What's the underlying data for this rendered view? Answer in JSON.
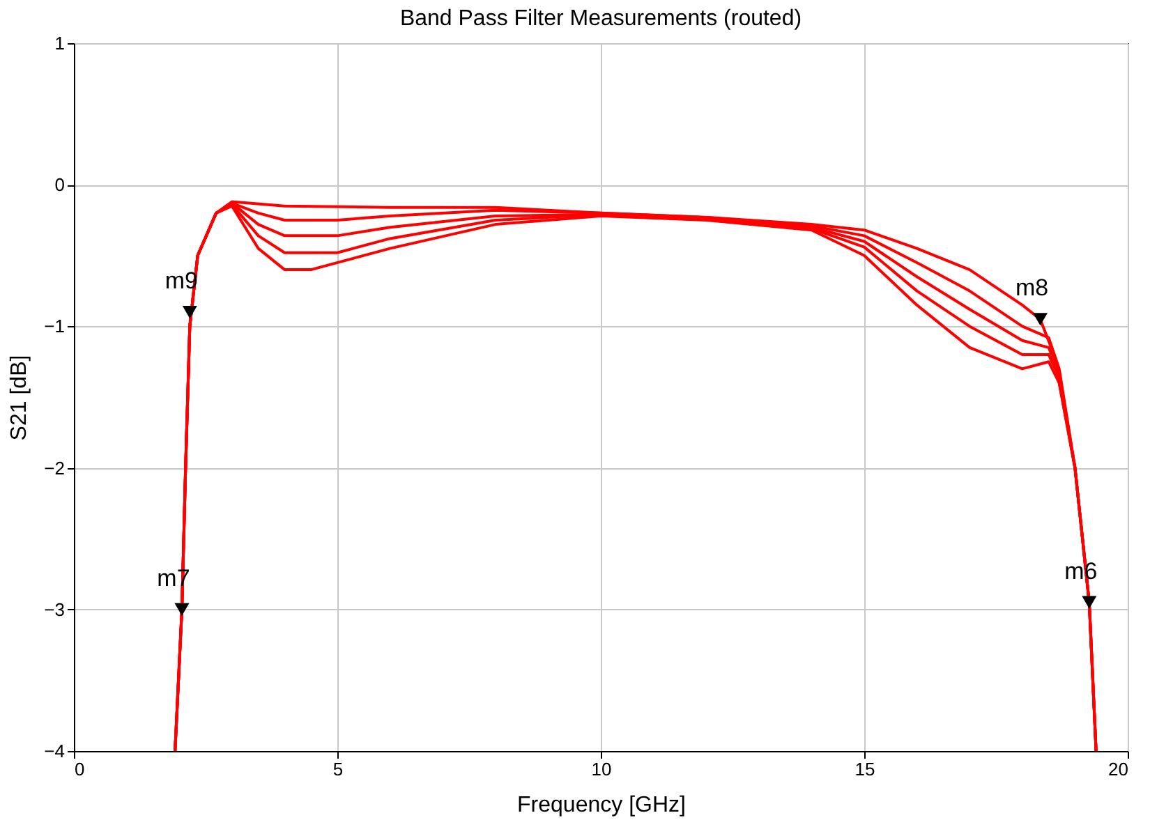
{
  "chart_data": {
    "type": "line",
    "title": "Band Pass Filter Measurements (routed)",
    "xlabel": "Frequency [GHz]",
    "ylabel": "S21 [dB]",
    "xlim": [
      0,
      20
    ],
    "ylim": [
      -4,
      1
    ],
    "xticks": [
      0,
      5,
      10,
      15,
      20
    ],
    "yticks": [
      -4,
      -3,
      -2,
      -1,
      0,
      1
    ],
    "grid": true,
    "legend": false,
    "marker": "none",
    "line_style": "solid",
    "series": [
      {
        "color": "#ff0000",
        "x": [
          1.92,
          2.05,
          2.12,
          2.2,
          2.35,
          2.7,
          3.0,
          4,
          6,
          8,
          10,
          12,
          14,
          15,
          16,
          17,
          18,
          18.34,
          18.6,
          19,
          19.27,
          19.4
        ],
        "values": [
          -4,
          -3,
          -2,
          -1,
          -0.5,
          -0.2,
          -0.12,
          -0.15,
          -0.16,
          -0.16,
          -0.2,
          -0.23,
          -0.28,
          -0.32,
          -0.45,
          -0.6,
          -0.85,
          -0.95,
          -1.2,
          -2,
          -2.95,
          -4
        ]
      },
      {
        "color": "#ff0000",
        "x": [
          1.92,
          2.05,
          2.12,
          2.2,
          2.35,
          2.7,
          3.0,
          3.5,
          4,
          5,
          6,
          8,
          10,
          12,
          14,
          15,
          16,
          17,
          18,
          18.5,
          18.7,
          19,
          19.27,
          19.4
        ],
        "values": [
          -4,
          -3,
          -2,
          -1,
          -0.5,
          -0.2,
          -0.13,
          -0.2,
          -0.25,
          -0.25,
          -0.22,
          -0.18,
          -0.2,
          -0.23,
          -0.29,
          -0.36,
          -0.55,
          -0.75,
          -1.0,
          -1.08,
          -1.3,
          -2,
          -2.95,
          -4
        ]
      },
      {
        "color": "#ff0000",
        "x": [
          1.92,
          2.05,
          2.12,
          2.2,
          2.35,
          2.7,
          3.0,
          3.5,
          4,
          5,
          6,
          8,
          10,
          12,
          14,
          15,
          16,
          17,
          18,
          18.5,
          18.7,
          19,
          19.27,
          19.4
        ],
        "values": [
          -4,
          -3,
          -2,
          -1,
          -0.5,
          -0.2,
          -0.13,
          -0.28,
          -0.36,
          -0.36,
          -0.3,
          -0.22,
          -0.21,
          -0.24,
          -0.3,
          -0.4,
          -0.65,
          -0.88,
          -1.1,
          -1.15,
          -1.33,
          -2,
          -2.95,
          -4
        ]
      },
      {
        "color": "#ff0000",
        "x": [
          1.92,
          2.05,
          2.12,
          2.2,
          2.35,
          2.7,
          3.0,
          3.5,
          4,
          5,
          6,
          8,
          10,
          12,
          14,
          15,
          16,
          17,
          18,
          18.5,
          18.7,
          19,
          19.27,
          19.4
        ],
        "values": [
          -4,
          -3,
          -2,
          -1,
          -0.5,
          -0.2,
          -0.14,
          -0.36,
          -0.48,
          -0.48,
          -0.38,
          -0.25,
          -0.21,
          -0.24,
          -0.31,
          -0.44,
          -0.75,
          -1.0,
          -1.2,
          -1.2,
          -1.36,
          -2,
          -2.95,
          -4
        ]
      },
      {
        "color": "#ff0000",
        "x": [
          1.92,
          2.05,
          2.12,
          2.2,
          2.35,
          2.7,
          3.0,
          3.5,
          4,
          4.5,
          6,
          8,
          10,
          12,
          14,
          15,
          16,
          17,
          18,
          18.5,
          18.7,
          19,
          19.27,
          19.4
        ],
        "values": [
          -4,
          -3,
          -2,
          -1,
          -0.5,
          -0.2,
          -0.15,
          -0.45,
          -0.6,
          -0.6,
          -0.45,
          -0.28,
          -0.22,
          -0.25,
          -0.32,
          -0.5,
          -0.85,
          -1.15,
          -1.3,
          -1.25,
          -1.4,
          -2,
          -2.95,
          -4
        ]
      },
      {
        "type": "scatter",
        "color": "#000000",
        "marker": "triangle",
        "x": [
          2.2,
          2.05,
          18.34,
          19.27
        ],
        "values": [
          -0.9,
          -3.0,
          -0.95,
          -2.95
        ]
      }
    ],
    "annotations": [
      {
        "text": "m9",
        "x": 2.2,
        "y": -0.9
      },
      {
        "text": "m7",
        "x": 2.05,
        "y": -3.0
      },
      {
        "text": "m8",
        "x": 18.34,
        "y": -0.95
      },
      {
        "text": "m6",
        "x": 19.27,
        "y": -2.95
      }
    ]
  }
}
